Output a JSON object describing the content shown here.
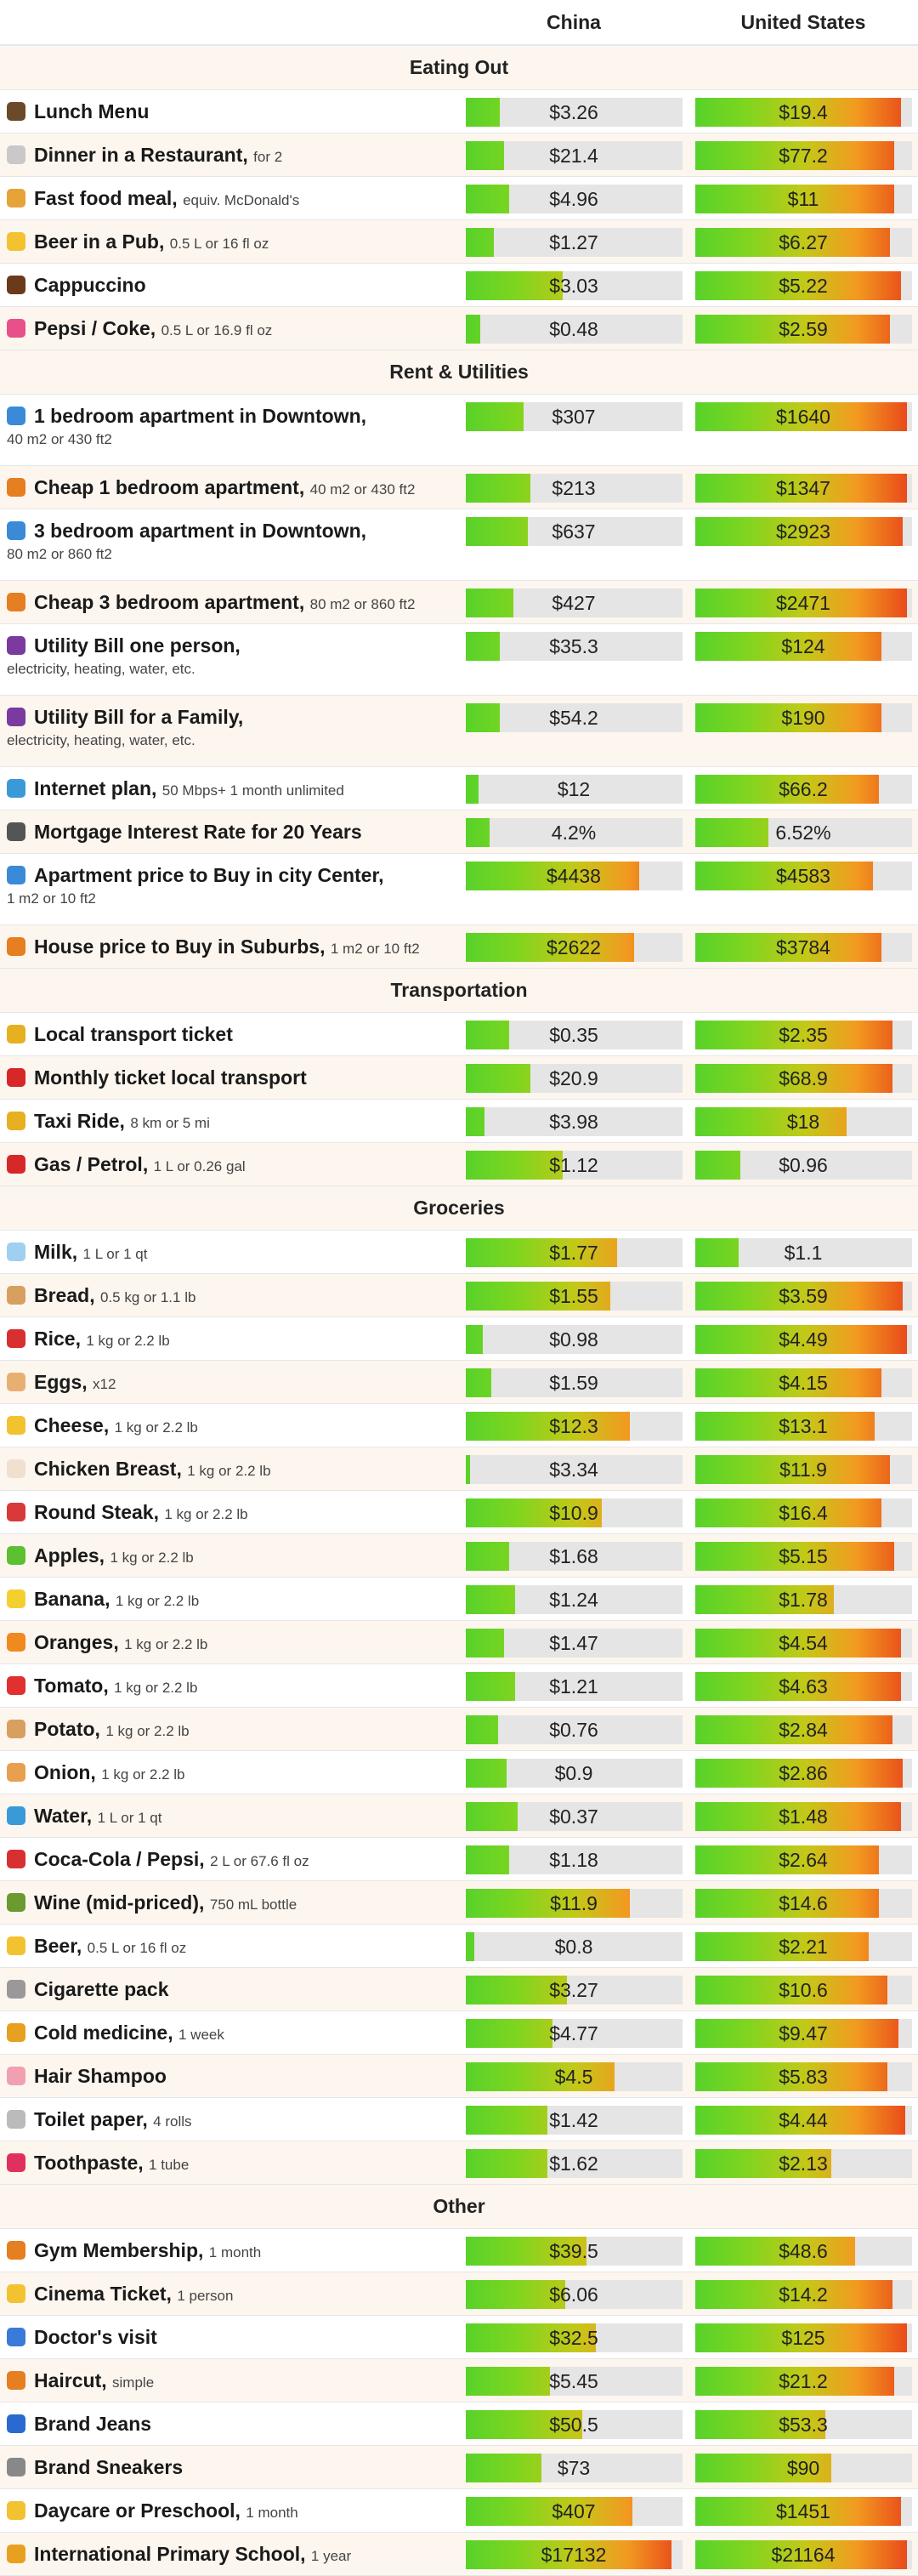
{
  "columns": [
    "China",
    "United States"
  ],
  "sections": [
    {
      "title": "Eating Out",
      "rows": [
        {
          "icon": "burger-icon",
          "icon_color": "#6a4a2a",
          "name": "Lunch Menu",
          "note": "",
          "sub": "",
          "china": {
            "value": "$3.26",
            "level": 0.16
          },
          "us": {
            "value": "$19.4",
            "level": 0.95
          }
        },
        {
          "icon": "fork-icon",
          "icon_color": "#c9c9c9",
          "name": "Dinner in a Restaurant,",
          "note": "for 2",
          "sub": "",
          "china": {
            "value": "$21.4",
            "level": 0.18
          },
          "us": {
            "value": "$77.2",
            "level": 0.92
          }
        },
        {
          "icon": "sandwich-icon",
          "icon_color": "#e5a33a",
          "name": "Fast food meal,",
          "note": "equiv. McDonald's",
          "sub": "",
          "china": {
            "value": "$4.96",
            "level": 0.2
          },
          "us": {
            "value": "$11",
            "level": 0.92
          }
        },
        {
          "icon": "beer-icon",
          "icon_color": "#f3c230",
          "name": "Beer in a Pub,",
          "note": "0.5 L or 16 fl oz",
          "sub": "",
          "china": {
            "value": "$1.27",
            "level": 0.13
          },
          "us": {
            "value": "$6.27",
            "level": 0.9
          }
        },
        {
          "icon": "coffee-icon",
          "icon_color": "#6a3a1a",
          "name": "Cappuccino",
          "note": "",
          "sub": "",
          "china": {
            "value": "$3.03",
            "level": 0.45
          },
          "us": {
            "value": "$5.22",
            "level": 0.95
          }
        },
        {
          "icon": "soda-icon",
          "icon_color": "#e8508a",
          "name": "Pepsi / Coke,",
          "note": "0.5 L or 16.9 fl oz",
          "sub": "",
          "china": {
            "value": "$0.48",
            "level": 0.07
          },
          "us": {
            "value": "$2.59",
            "level": 0.9
          }
        }
      ]
    },
    {
      "title": "Rent & Utilities",
      "rows": [
        {
          "icon": "city-icon",
          "icon_color": "#3a8ad8",
          "name": "1 bedroom apartment in Downtown,",
          "note": "",
          "sub": "40 m2 or 430 ft2",
          "china": {
            "value": "$307",
            "level": 0.27
          },
          "us": {
            "value": "$1640",
            "level": 0.98
          }
        },
        {
          "icon": "house-icon",
          "icon_color": "#e67e22",
          "name": "Cheap 1 bedroom apartment,",
          "note": "40 m2 or 430 ft2",
          "sub": "",
          "china": {
            "value": "$213",
            "level": 0.3
          },
          "us": {
            "value": "$1347",
            "level": 0.98
          }
        },
        {
          "icon": "city-icon",
          "icon_color": "#3a8ad8",
          "name": "3 bedroom apartment in Downtown,",
          "note": "",
          "sub": "80 m2 or 860 ft2",
          "china": {
            "value": "$637",
            "level": 0.29
          },
          "us": {
            "value": "$2923",
            "level": 0.96
          }
        },
        {
          "icon": "house-icon",
          "icon_color": "#e67e22",
          "name": "Cheap 3 bedroom apartment,",
          "note": "80 m2 or 860 ft2",
          "sub": "",
          "china": {
            "value": "$427",
            "level": 0.22
          },
          "us": {
            "value": "$2471",
            "level": 0.98
          }
        },
        {
          "icon": "plug-icon",
          "icon_color": "#7a3aa0",
          "name": "Utility Bill one person,",
          "note": "",
          "sub": "electricity, heating, water, etc.",
          "china": {
            "value": "$35.3",
            "level": 0.16
          },
          "us": {
            "value": "$124",
            "level": 0.86
          }
        },
        {
          "icon": "plug-icon",
          "icon_color": "#7a3aa0",
          "name": "Utility Bill for a Family,",
          "note": "",
          "sub": "electricity, heating, water, etc.",
          "china": {
            "value": "$54.2",
            "level": 0.16
          },
          "us": {
            "value": "$190",
            "level": 0.86
          }
        },
        {
          "icon": "globe-icon",
          "icon_color": "#3a9ad8",
          "name": "Internet plan,",
          "note": "50 Mbps+ 1 month unlimited",
          "sub": "",
          "china": {
            "value": "$12",
            "level": 0.06
          },
          "us": {
            "value": "$66.2",
            "level": 0.85
          }
        },
        {
          "icon": "bank-icon",
          "icon_color": "#555555",
          "name": "Mortgage Interest Rate for 20 Years",
          "note": "",
          "sub": "",
          "china": {
            "value": "4.2%",
            "level": 0.11
          },
          "us": {
            "value": "6.52%",
            "level": 0.34
          }
        },
        {
          "icon": "city-icon",
          "icon_color": "#3a8ad8",
          "name": "Apartment price to Buy in city Center,",
          "note": "",
          "sub": "1 m2 or 10 ft2",
          "china": {
            "value": "$4438",
            "level": 0.8
          },
          "us": {
            "value": "$4583",
            "level": 0.82
          }
        },
        {
          "icon": "house-icon",
          "icon_color": "#e67e22",
          "name": "House price to Buy in Suburbs,",
          "note": "1 m2 or 10 ft2",
          "sub": "",
          "china": {
            "value": "$2622",
            "level": 0.78
          },
          "us": {
            "value": "$3784",
            "level": 0.86
          }
        }
      ]
    },
    {
      "title": "Transportation",
      "rows": [
        {
          "icon": "tram-icon",
          "icon_color": "#e6b020",
          "name": "Local transport ticket",
          "note": "",
          "sub": "",
          "china": {
            "value": "$0.35",
            "level": 0.2
          },
          "us": {
            "value": "$2.35",
            "level": 0.91
          }
        },
        {
          "icon": "ticket-icon",
          "icon_color": "#d62828",
          "name": "Monthly ticket local transport",
          "note": "",
          "sub": "",
          "china": {
            "value": "$20.9",
            "level": 0.3
          },
          "us": {
            "value": "$68.9",
            "level": 0.91
          }
        },
        {
          "icon": "taxi-icon",
          "icon_color": "#e6b020",
          "name": "Taxi Ride,",
          "note": "8 km or 5 mi",
          "sub": "",
          "china": {
            "value": "$3.98",
            "level": 0.09
          },
          "us": {
            "value": "$18",
            "level": 0.7
          }
        },
        {
          "icon": "fuel-icon",
          "icon_color": "#d62828",
          "name": "Gas / Petrol,",
          "note": "1 L or 0.26 gal",
          "sub": "",
          "china": {
            "value": "$1.12",
            "level": 0.45
          },
          "us": {
            "value": "$0.96",
            "level": 0.21
          }
        }
      ]
    },
    {
      "title": "Groceries",
      "rows": [
        {
          "icon": "milk-icon",
          "icon_color": "#9fd0f0",
          "name": "Milk,",
          "note": "1 L or 1 qt",
          "sub": "",
          "china": {
            "value": "$1.77",
            "level": 0.7
          },
          "us": {
            "value": "$1.1",
            "level": 0.2
          }
        },
        {
          "icon": "bread-icon",
          "icon_color": "#d8a060",
          "name": "Bread,",
          "note": "0.5 kg or 1.1 lb",
          "sub": "",
          "china": {
            "value": "$1.55",
            "level": 0.67
          },
          "us": {
            "value": "$3.59",
            "level": 0.96
          }
        },
        {
          "icon": "rice-icon",
          "icon_color": "#d83030",
          "name": "Rice,",
          "note": "1 kg or 2.2 lb",
          "sub": "",
          "china": {
            "value": "$0.98",
            "level": 0.08
          },
          "us": {
            "value": "$4.49",
            "level": 0.98
          }
        },
        {
          "icon": "egg-icon",
          "icon_color": "#e8b070",
          "name": "Eggs,",
          "note": "x12",
          "sub": "",
          "china": {
            "value": "$1.59",
            "level": 0.12
          },
          "us": {
            "value": "$4.15",
            "level": 0.86
          }
        },
        {
          "icon": "cheese-icon",
          "icon_color": "#f3c230",
          "name": "Cheese,",
          "note": "1 kg or 2.2 lb",
          "sub": "",
          "china": {
            "value": "$12.3",
            "level": 0.76
          },
          "us": {
            "value": "$13.1",
            "level": 0.83
          }
        },
        {
          "icon": "chicken-icon",
          "icon_color": "#f0e0d0",
          "name": "Chicken Breast,",
          "note": "1 kg or 2.2 lb",
          "sub": "",
          "china": {
            "value": "$3.34",
            "level": 0.02
          },
          "us": {
            "value": "$11.9",
            "level": 0.9
          }
        },
        {
          "icon": "steak-icon",
          "icon_color": "#d83a3a",
          "name": "Round Steak,",
          "note": "1 kg or 2.2 lb",
          "sub": "",
          "china": {
            "value": "$10.9",
            "level": 0.63
          },
          "us": {
            "value": "$16.4",
            "level": 0.86
          }
        },
        {
          "icon": "apple-icon",
          "icon_color": "#5cc030",
          "name": "Apples,",
          "note": "1 kg or 2.2 lb",
          "sub": "",
          "china": {
            "value": "$1.68",
            "level": 0.2
          },
          "us": {
            "value": "$5.15",
            "level": 0.92
          }
        },
        {
          "icon": "banana-icon",
          "icon_color": "#f3d030",
          "name": "Banana,",
          "note": "1 kg or 2.2 lb",
          "sub": "",
          "china": {
            "value": "$1.24",
            "level": 0.23
          },
          "us": {
            "value": "$1.78",
            "level": 0.64
          }
        },
        {
          "icon": "orange-icon",
          "icon_color": "#f08a20",
          "name": "Oranges,",
          "note": "1 kg or 2.2 lb",
          "sub": "",
          "china": {
            "value": "$1.47",
            "level": 0.18
          },
          "us": {
            "value": "$4.54",
            "level": 0.95
          }
        },
        {
          "icon": "tomato-icon",
          "icon_color": "#e03030",
          "name": "Tomato,",
          "note": "1 kg or 2.2 lb",
          "sub": "",
          "china": {
            "value": "$1.21",
            "level": 0.23
          },
          "us": {
            "value": "$4.63",
            "level": 0.95
          }
        },
        {
          "icon": "potato-icon",
          "icon_color": "#d8a060",
          "name": "Potato,",
          "note": "1 kg or 2.2 lb",
          "sub": "",
          "china": {
            "value": "$0.76",
            "level": 0.15
          },
          "us": {
            "value": "$2.84",
            "level": 0.91
          }
        },
        {
          "icon": "onion-icon",
          "icon_color": "#e8a050",
          "name": "Onion,",
          "note": "1 kg or 2.2 lb",
          "sub": "",
          "china": {
            "value": "$0.9",
            "level": 0.19
          },
          "us": {
            "value": "$2.86",
            "level": 0.96
          }
        },
        {
          "icon": "water-icon",
          "icon_color": "#3a9ad8",
          "name": "Water,",
          "note": "1 L or 1 qt",
          "sub": "",
          "china": {
            "value": "$0.37",
            "level": 0.24
          },
          "us": {
            "value": "$1.48",
            "level": 0.95
          }
        },
        {
          "icon": "cola-icon",
          "icon_color": "#d83030",
          "name": "Coca-Cola / Pepsi,",
          "note": "2 L or 67.6 fl oz",
          "sub": "",
          "china": {
            "value": "$1.18",
            "level": 0.2
          },
          "us": {
            "value": "$2.64",
            "level": 0.85
          }
        },
        {
          "icon": "wine-icon",
          "icon_color": "#6a9a30",
          "name": "Wine (mid-priced),",
          "note": "750 mL bottle",
          "sub": "",
          "china": {
            "value": "$11.9",
            "level": 0.76
          },
          "us": {
            "value": "$14.6",
            "level": 0.85
          }
        },
        {
          "icon": "beer-icon",
          "icon_color": "#f3c230",
          "name": "Beer,",
          "note": "0.5 L or 16 fl oz",
          "sub": "",
          "china": {
            "value": "$0.8",
            "level": 0.04
          },
          "us": {
            "value": "$2.21",
            "level": 0.8
          }
        },
        {
          "icon": "cigarette-icon",
          "icon_color": "#999999",
          "name": "Cigarette pack",
          "note": "",
          "sub": "",
          "china": {
            "value": "$3.27",
            "level": 0.47
          },
          "us": {
            "value": "$10.6",
            "level": 0.89
          }
        },
        {
          "icon": "pill-icon",
          "icon_color": "#e8a020",
          "name": "Cold medicine,",
          "note": "1 week",
          "sub": "",
          "china": {
            "value": "$4.77",
            "level": 0.4
          },
          "us": {
            "value": "$9.47",
            "level": 0.94
          }
        },
        {
          "icon": "bottle-icon",
          "icon_color": "#f0a0b0",
          "name": "Hair Shampoo",
          "note": "",
          "sub": "",
          "china": {
            "value": "$4.5",
            "level": 0.69
          },
          "us": {
            "value": "$5.83",
            "level": 0.89
          }
        },
        {
          "icon": "roll-icon",
          "icon_color": "#bbbbbb",
          "name": "Toilet paper,",
          "note": "4 rolls",
          "sub": "",
          "china": {
            "value": "$1.42",
            "level": 0.38
          },
          "us": {
            "value": "$4.44",
            "level": 0.97
          }
        },
        {
          "icon": "lips-icon",
          "icon_color": "#e03060",
          "name": "Toothpaste,",
          "note": "1 tube",
          "sub": "",
          "china": {
            "value": "$1.62",
            "level": 0.38
          },
          "us": {
            "value": "$2.13",
            "level": 0.63
          }
        }
      ]
    },
    {
      "title": "Other",
      "rows": [
        {
          "icon": "gym-icon",
          "icon_color": "#e67e22",
          "name": "Gym Membership,",
          "note": "1 month",
          "sub": "",
          "china": {
            "value": "$39.5",
            "level": 0.56
          },
          "us": {
            "value": "$48.6",
            "level": 0.74
          }
        },
        {
          "icon": "ticket-icon",
          "icon_color": "#f3c230",
          "name": "Cinema Ticket,",
          "note": "1 person",
          "sub": "",
          "china": {
            "value": "$6.06",
            "level": 0.46
          },
          "us": {
            "value": "$14.2",
            "level": 0.91
          }
        },
        {
          "icon": "doctor-icon",
          "icon_color": "#3a7ad8",
          "name": "Doctor's visit",
          "note": "",
          "sub": "",
          "china": {
            "value": "$32.5",
            "level": 0.6
          },
          "us": {
            "value": "$125",
            "level": 0.98
          }
        },
        {
          "icon": "haircut-icon",
          "icon_color": "#e67e22",
          "name": "Haircut,",
          "note": "simple",
          "sub": "",
          "china": {
            "value": "$5.45",
            "level": 0.39
          },
          "us": {
            "value": "$21.2",
            "level": 0.92
          }
        },
        {
          "icon": "jeans-icon",
          "icon_color": "#2a6ad0",
          "name": "Brand Jeans",
          "note": "",
          "sub": "",
          "china": {
            "value": "$50.5",
            "level": 0.54
          },
          "us": {
            "value": "$53.3",
            "level": 0.6
          }
        },
        {
          "icon": "sneaker-icon",
          "icon_color": "#888888",
          "name": "Brand Sneakers",
          "note": "",
          "sub": "",
          "china": {
            "value": "$73",
            "level": 0.35
          },
          "us": {
            "value": "$90",
            "level": 0.63
          }
        },
        {
          "icon": "baby-icon",
          "icon_color": "#f3c230",
          "name": "Daycare or Preschool,",
          "note": "1 month",
          "sub": "",
          "china": {
            "value": "$407",
            "level": 0.77
          },
          "us": {
            "value": "$1451",
            "level": 0.95
          }
        },
        {
          "icon": "school-icon",
          "icon_color": "#e8a020",
          "name": "International Primary School,",
          "note": "1 year",
          "sub": "",
          "china": {
            "value": "$17132",
            "level": 0.95
          },
          "us": {
            "value": "$21164",
            "level": 0.98
          }
        }
      ]
    }
  ]
}
